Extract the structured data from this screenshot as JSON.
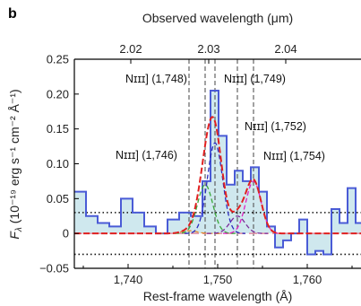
{
  "chart_data": {
    "type": "line",
    "panel_label": "b",
    "xlabel": "Rest-frame wavelength (Å)",
    "top_xlabel": "Observed wavelength (μm)",
    "ylabel": "Fλ (10⁻¹⁹ erg s⁻¹ cm⁻² Å⁻¹)",
    "ylabel_parts": {
      "main": "F",
      "sub": "λ",
      "unit": " (10⁻¹⁹ erg s⁻¹ cm⁻² Å⁻¹)"
    },
    "xlim": [
      1734,
      1766
    ],
    "ylim": [
      -0.05,
      0.25
    ],
    "xticks": [
      1740,
      1750,
      1760
    ],
    "xtick_labels": [
      "1,740",
      "1,750",
      "1,760"
    ],
    "yticks": [
      -0.05,
      0,
      0.05,
      0.1,
      0.15,
      0.2,
      0.25
    ],
    "ytick_labels": [
      "−0.05",
      "0",
      "0.05",
      "0.10",
      "0.15",
      "0.20",
      "0.25"
    ],
    "top_ticks": [
      {
        "rest": 1740.3,
        "label": "2.02"
      },
      {
        "rest": 1749.0,
        "label": "2.03"
      },
      {
        "rest": 1757.6,
        "label": "2.04"
      }
    ],
    "spectrum": {
      "edges": [
        1734.0,
        1735.3,
        1736.6,
        1737.9,
        1739.2,
        1740.5,
        1741.8,
        1743.1,
        1744.4,
        1745.7,
        1747.0,
        1748.3,
        1749.2,
        1750.1,
        1751.0,
        1751.9,
        1752.8,
        1753.7,
        1754.6,
        1755.5,
        1756.4,
        1757.3,
        1758.2,
        1759.1,
        1760.0,
        1760.9,
        1761.8,
        1762.7,
        1763.6,
        1764.5,
        1765.4,
        1766.0
      ],
      "values": [
        0.06,
        0.025,
        0.015,
        0.01,
        0.05,
        0.03,
        0.01,
        0.0,
        0.02,
        0.03,
        0.025,
        0.075,
        0.205,
        0.14,
        0.07,
        0.09,
        0.075,
        0.095,
        0.06,
        0.01,
        -0.02,
        -0.01,
        0.0,
        0.02,
        -0.03,
        -0.025,
        -0.03,
        0.035,
        0.015,
        0.065,
        0.015
      ],
      "color": "#4a5bd6",
      "fill": "#cfe8ee"
    },
    "noise_level": 0.03,
    "lines": [
      {
        "label": "Nɪɪɪ] (1,746)",
        "center": 1746.8,
        "amp": 0.004
      },
      {
        "label": "Nɪɪɪ] (1,748)",
        "center": 1748.6,
        "amp": 0.07
      },
      {
        "label": "Nɪɪɪ] (1,749)",
        "center": 1749.7,
        "amp": 0.13
      },
      {
        "label": "Nɪɪɪ] (1,752)",
        "center": 1752.2,
        "amp": 0.025
      },
      {
        "label": "Nɪɪɪ] (1,754)",
        "center": 1754.0,
        "amp": 0.075
      }
    ],
    "line_sigma": 0.85,
    "component_colors": [
      "#e48a2a",
      "#3aa83a",
      "#2b2bbf",
      "#7a2a9a",
      "#e020c0"
    ],
    "total_fit_color": "#e02020",
    "dashed_line_color": "#555555",
    "zero_line_color": "#e08aa0"
  }
}
